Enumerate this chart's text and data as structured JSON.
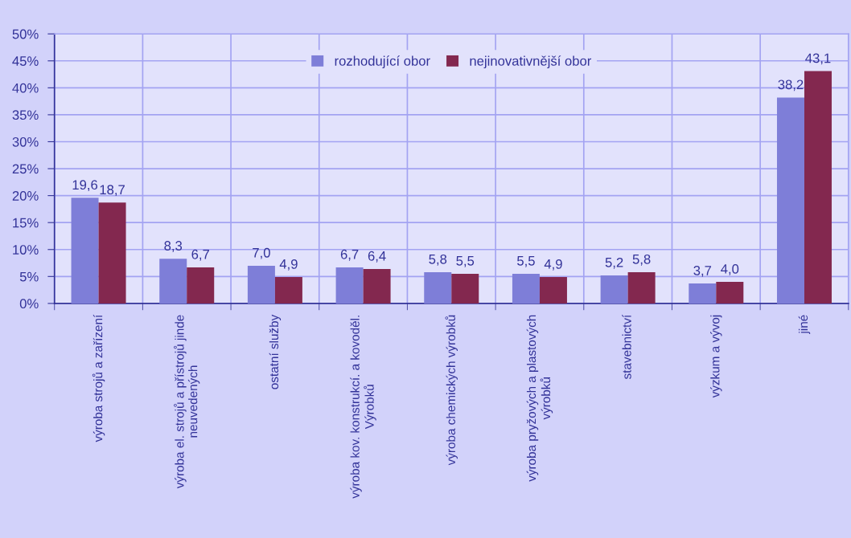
{
  "chart_data": {
    "type": "bar",
    "categories": [
      "výroba strojů a zařízení",
      "výroba el. strojů a přístrojů jinde\nneuvedených",
      "ostatní služby",
      "výroba kov. konstrukcí. a kovoděl.\nVýrobků",
      "výroba chemických výrobků",
      "výroba pryžových a plastových\nvýrobků",
      "stavebnictví",
      "výzkum a vývoj",
      "jiné"
    ],
    "series": [
      {
        "name": "rozhodující obor",
        "color": "#7e7ed8",
        "values": [
          19.6,
          8.3,
          7.0,
          6.7,
          5.8,
          5.5,
          5.2,
          3.7,
          38.2
        ],
        "value_labels": [
          "19,6",
          "8,3",
          "7,0",
          "6,7",
          "5,8",
          "5,5",
          "5,2",
          "3,7",
          "38,2"
        ]
      },
      {
        "name": "nejinovativnější obor",
        "color": "#83284f",
        "values": [
          18.7,
          6.7,
          4.9,
          6.4,
          5.5,
          4.9,
          5.8,
          4.0,
          43.1
        ],
        "value_labels": [
          "18,7",
          "6,7",
          "4,9",
          "6,4",
          "5,5",
          "4,9",
          "5,8",
          "4,0",
          "43,1"
        ]
      }
    ],
    "ylim": [
      0,
      50
    ],
    "yticks": [
      {
        "value": 0,
        "label": "0%"
      },
      {
        "value": 5,
        "label": "5%"
      },
      {
        "value": 10,
        "label": "10%"
      },
      {
        "value": 15,
        "label": "15%"
      },
      {
        "value": 20,
        "label": "20%"
      },
      {
        "value": 25,
        "label": "25%"
      },
      {
        "value": 30,
        "label": "30%"
      },
      {
        "value": 35,
        "label": "35%"
      },
      {
        "value": 40,
        "label": "40%"
      },
      {
        "value": 45,
        "label": "45%"
      },
      {
        "value": 50,
        "label": "50%"
      }
    ],
    "grid": true,
    "legend": "top"
  }
}
